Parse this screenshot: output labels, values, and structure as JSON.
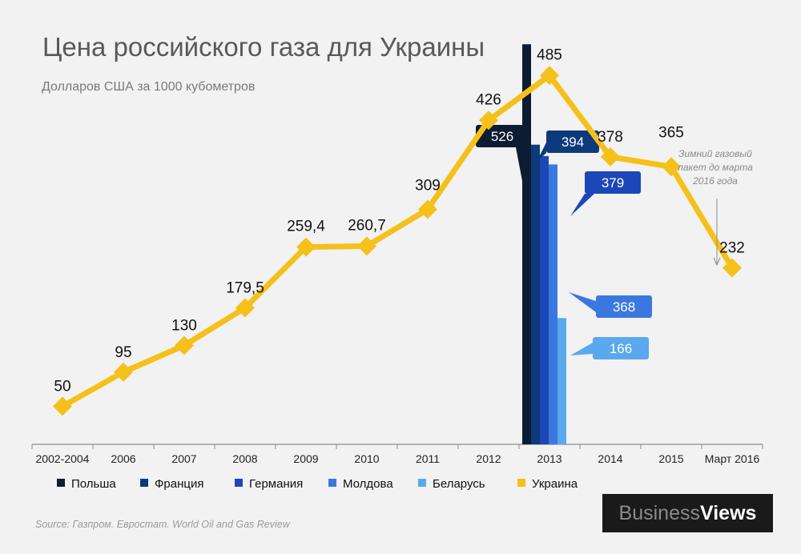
{
  "title": "Цена российского газа для Украины",
  "subtitle": "Долларов США за 1000 кубометров",
  "source": "Source: Газпром. Евростат. World Oil and Gas Review",
  "logo": {
    "part1": "Business",
    "part2": "Views"
  },
  "colors": {
    "ukraine": "#f5c01a",
    "poland": "#0c1c33",
    "france": "#0d3a7a",
    "germany": "#1c47b8",
    "moldova": "#3a78e0",
    "belarus": "#5aa8ee"
  },
  "chart_data": {
    "type": "line",
    "categories": [
      "2002-2004",
      "2006",
      "2007",
      "2008",
      "2009",
      "2010",
      "2011",
      "2012",
      "2013",
      "2014",
      "2015",
      "Март 2016"
    ],
    "series": [
      {
        "name": "Украина",
        "type": "line",
        "values": [
          50,
          95,
          130,
          179.5,
          259.4,
          260.7,
          309,
          426,
          485,
          378,
          365,
          232
        ],
        "labels": [
          "50",
          "95",
          "130",
          "179,5",
          "259,4",
          "260,7",
          "309",
          "426",
          "485",
          "378",
          "365",
          "232"
        ]
      },
      {
        "name": "Польша",
        "type": "bar",
        "category": "2013",
        "value": 526,
        "label": "526"
      },
      {
        "name": "Франция",
        "type": "bar",
        "category": "2013",
        "value": 394,
        "label": "394"
      },
      {
        "name": "Германия",
        "type": "bar",
        "category": "2013",
        "value": 379,
        "label": "379"
      },
      {
        "name": "Молдова",
        "type": "bar",
        "category": "2013",
        "value": 368,
        "label": "368"
      },
      {
        "name": "Беларусь",
        "type": "bar",
        "category": "2013",
        "value": 166,
        "label": "166"
      }
    ],
    "legend": [
      "Польша",
      "Франция",
      "Германия",
      "Молдова",
      "Беларусь",
      "Украина"
    ],
    "legend_position": "bottom",
    "annotation": "Зимний газовый пакет до марта 2016 года",
    "ylim": [
      0,
      560
    ],
    "grid": false
  }
}
